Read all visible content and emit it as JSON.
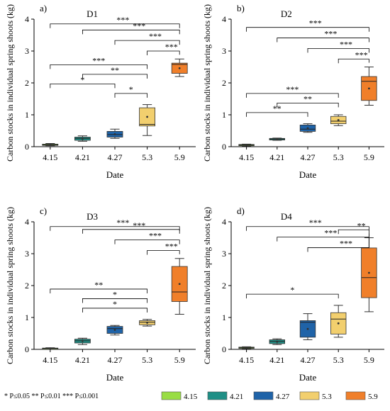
{
  "figure": {
    "footnote": "* P≤0.05   ** P≤0.01   *** P≤0.001",
    "legend": [
      {
        "label": "4.15",
        "color": "#99dd44"
      },
      {
        "label": "4.21",
        "color": "#1f8f86"
      },
      {
        "label": "4.27",
        "color": "#1f63a8"
      },
      {
        "label": "5.3",
        "color": "#f2cf6e"
      },
      {
        "label": "5.9",
        "color": "#f07f2a"
      }
    ]
  },
  "chart_data": [
    {
      "type": "box",
      "panel_label": "a)",
      "title": "D1",
      "xlabel": "Date",
      "ylabel": "Carbon stocks in individual spring shoots (kg)",
      "categories": [
        "4.15",
        "4.21",
        "4.27",
        "5.3",
        "5.9"
      ],
      "ylim": [
        0,
        4
      ],
      "yticks": [
        "0",
        "1",
        "2",
        "3",
        "4"
      ],
      "boxes": [
        {
          "min": 0.03,
          "q1": 0.04,
          "median": 0.06,
          "q3": 0.08,
          "max": 0.1
        },
        {
          "min": 0.17,
          "q1": 0.2,
          "median": 0.26,
          "q3": 0.3,
          "max": 0.34
        },
        {
          "min": 0.26,
          "q1": 0.3,
          "median": 0.38,
          "q3": 0.48,
          "max": 0.55
        },
        {
          "min": 0.35,
          "q1": 0.65,
          "median": 0.7,
          "q3": 1.22,
          "max": 1.32
        },
        {
          "min": 2.2,
          "q1": 2.3,
          "median": 2.58,
          "q3": 2.62,
          "max": 2.75
        }
      ],
      "comparisons": [
        {
          "from": "4.15",
          "to": "4.27",
          "label": "*"
        },
        {
          "from": "4.15",
          "to": "5.3",
          "label": "***"
        },
        {
          "from": "4.21",
          "to": "5.3",
          "label": "**"
        },
        {
          "from": "4.27",
          "to": "5.3",
          "label": "*"
        },
        {
          "from": "4.15",
          "to": "5.9",
          "label": "***"
        },
        {
          "from": "4.21",
          "to": "5.9",
          "label": "***"
        },
        {
          "from": "4.27",
          "to": "5.9",
          "label": "***"
        },
        {
          "from": "5.3",
          "to": "5.9",
          "label": "***"
        }
      ]
    },
    {
      "type": "box",
      "panel_label": "b)",
      "title": "D2",
      "xlabel": "Date",
      "ylabel": "Carbon stocks in individual spring shoots (kg)",
      "categories": [
        "4.15",
        "4.21",
        "4.27",
        "5.3",
        "5.9"
      ],
      "ylim": [
        0,
        4
      ],
      "yticks": [
        "0",
        "1",
        "2",
        "3",
        "4"
      ],
      "boxes": [
        {
          "min": 0.02,
          "q1": 0.03,
          "median": 0.05,
          "q3": 0.07,
          "max": 0.08
        },
        {
          "min": 0.2,
          "q1": 0.21,
          "median": 0.24,
          "q3": 0.26,
          "max": 0.27
        },
        {
          "min": 0.45,
          "q1": 0.48,
          "median": 0.55,
          "q3": 0.68,
          "max": 0.72
        },
        {
          "min": 0.66,
          "q1": 0.72,
          "median": 0.8,
          "q3": 0.95,
          "max": 1.0
        },
        {
          "min": 1.3,
          "q1": 1.45,
          "median": 2.05,
          "q3": 2.2,
          "max": 2.5
        }
      ],
      "comparisons": [
        {
          "from": "4.15",
          "to": "4.27",
          "label": "**"
        },
        {
          "from": "4.15",
          "to": "5.3",
          "label": "***"
        },
        {
          "from": "4.21",
          "to": "5.3",
          "label": "**"
        },
        {
          "from": "4.15",
          "to": "5.9",
          "label": "***"
        },
        {
          "from": "4.21",
          "to": "5.9",
          "label": "***"
        },
        {
          "from": "4.27",
          "to": "5.9",
          "label": "***"
        },
        {
          "from": "5.3",
          "to": "5.9",
          "label": "***"
        }
      ]
    },
    {
      "type": "box",
      "panel_label": "c)",
      "title": "D3",
      "xlabel": "Date",
      "ylabel": "Carbon stocks in individual spring shoots (kg)",
      "categories": [
        "4.15",
        "4.21",
        "4.27",
        "5.3",
        "5.9"
      ],
      "ylim": [
        0,
        4
      ],
      "yticks": [
        "0",
        "1",
        "2",
        "3",
        "4"
      ],
      "boxes": [
        {
          "min": 0.01,
          "q1": 0.02,
          "median": 0.03,
          "q3": 0.04,
          "max": 0.05
        },
        {
          "min": 0.15,
          "q1": 0.2,
          "median": 0.27,
          "q3": 0.32,
          "max": 0.35
        },
        {
          "min": 0.45,
          "q1": 0.5,
          "median": 0.65,
          "q3": 0.72,
          "max": 0.75
        },
        {
          "min": 0.73,
          "q1": 0.77,
          "median": 0.85,
          "q3": 0.9,
          "max": 0.94
        },
        {
          "min": 1.1,
          "q1": 1.5,
          "median": 1.8,
          "q3": 2.6,
          "max": 2.85
        }
      ],
      "comparisons": [
        {
          "from": "4.15",
          "to": "5.3",
          "label": "**"
        },
        {
          "from": "4.21",
          "to": "5.3",
          "label": "*"
        },
        {
          "from": "4.21",
          "to": "5.3",
          "label": "*"
        },
        {
          "from": "4.15",
          "to": "5.9",
          "label": "***"
        },
        {
          "from": "4.21",
          "to": "5.9",
          "label": "***"
        },
        {
          "from": "4.27",
          "to": "5.9",
          "label": "***"
        },
        {
          "from": "5.3",
          "to": "5.9",
          "label": "***"
        }
      ]
    },
    {
      "type": "box",
      "panel_label": "d)",
      "title": "D4",
      "xlabel": "Date",
      "ylabel": "Carbon stocks in individual spring shoots (kg)",
      "categories": [
        "4.15",
        "4.21",
        "4.27",
        "5.3",
        "5.9"
      ],
      "ylim": [
        0,
        4
      ],
      "yticks": [
        "0",
        "1",
        "2",
        "3",
        "4"
      ],
      "boxes": [
        {
          "min": 0.02,
          "q1": 0.03,
          "median": 0.05,
          "q3": 0.07,
          "max": 0.08
        },
        {
          "min": 0.15,
          "q1": 0.18,
          "median": 0.25,
          "q3": 0.3,
          "max": 0.33
        },
        {
          "min": 0.3,
          "q1": 0.38,
          "median": 0.85,
          "q3": 0.9,
          "max": 1.12
        },
        {
          "min": 0.38,
          "q1": 0.48,
          "median": 0.95,
          "q3": 1.15,
          "max": 1.38
        },
        {
          "min": 1.18,
          "q1": 1.62,
          "median": 2.25,
          "q3": 3.18,
          "max": 3.5
        }
      ],
      "comparisons": [
        {
          "from": "4.15",
          "to": "5.3",
          "label": "*"
        },
        {
          "from": "4.15",
          "to": "5.9",
          "label": "***"
        },
        {
          "from": "4.21",
          "to": "5.9",
          "label": "***"
        },
        {
          "from": "4.27",
          "to": "5.9",
          "label": "***"
        },
        {
          "from": "5.3",
          "to": "5.9",
          "label": "**"
        }
      ]
    }
  ]
}
